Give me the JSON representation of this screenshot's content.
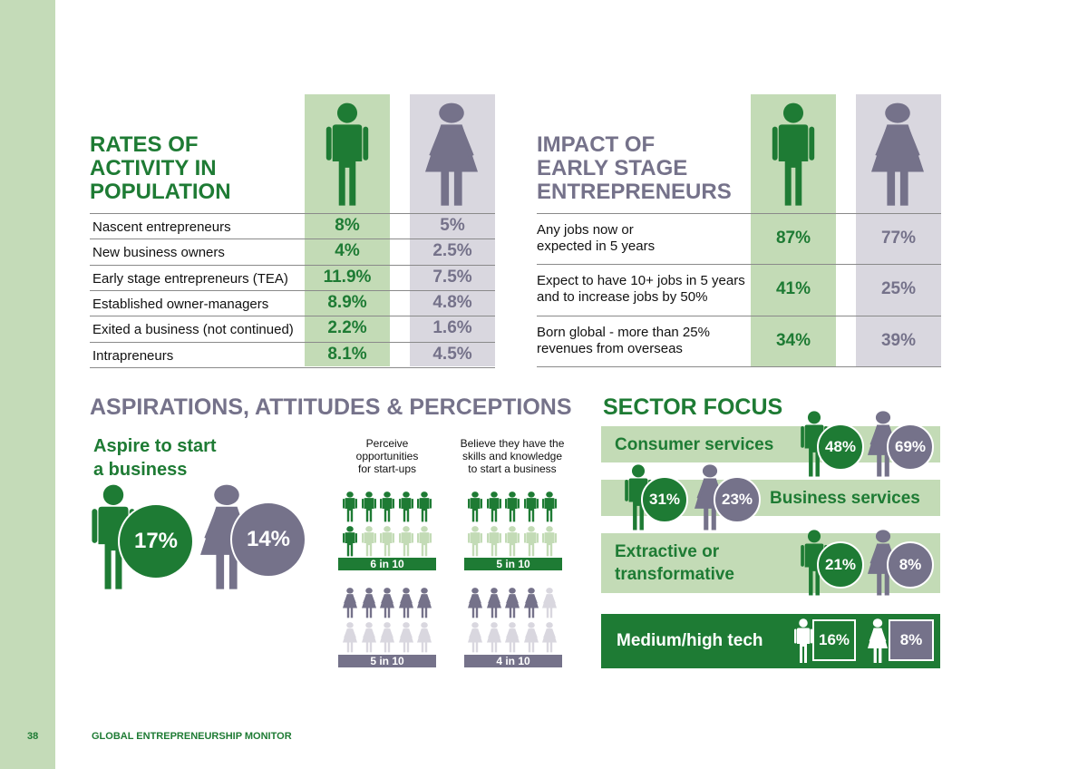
{
  "page_number": "38",
  "footer_title": "GLOBAL ENTREPRENEURSHIP MONITOR",
  "colors": {
    "green": "#1e7b34",
    "purple": "#75728a",
    "light_green": "#c3dbb6",
    "light_purple": "#d9d7df"
  },
  "rates": {
    "title_lines": [
      "RATES OF",
      "ACTIVITY IN",
      "POPULATION"
    ],
    "rows": [
      {
        "label": "Nascent entrepreneurs",
        "male": "8%",
        "female": "5%"
      },
      {
        "label": "New business owners",
        "male": "4%",
        "female": "2.5%"
      },
      {
        "label": "Early stage entrepreneurs (TEA)",
        "male": "11.9%",
        "female": "7.5%"
      },
      {
        "label": "Established owner-managers",
        "male": "8.9%",
        "female": "4.8%"
      },
      {
        "label": "Exited a business (not continued)",
        "male": "2.2%",
        "female": "1.6%"
      },
      {
        "label": "Intrapreneurs",
        "male": "8.1%",
        "female": "4.5%"
      }
    ]
  },
  "impact": {
    "title_lines": [
      "IMPACT OF",
      "EARLY STAGE",
      "ENTREPRENEURS"
    ],
    "rows": [
      {
        "label_lines": [
          "Any jobs now or",
          "expected in 5 years"
        ],
        "male": "87%",
        "female": "77%"
      },
      {
        "label_lines": [
          "Expect to have 10+ jobs in 5 years",
          "and to increase jobs by 50%"
        ],
        "male": "41%",
        "female": "25%"
      },
      {
        "label_lines": [
          "Born global - more than 25%",
          "revenues from overseas"
        ],
        "male": "34%",
        "female": "39%"
      }
    ]
  },
  "aspirations": {
    "title": "ASPIRATIONS, ATTITUDES & PERCEPTIONS",
    "aspire_lines": [
      "Aspire to start",
      "a business"
    ],
    "aspire_male": "17%",
    "aspire_female": "14%",
    "perceive_lines": [
      "Perceive",
      "opportunities",
      "for start-ups"
    ],
    "skills_lines": [
      "Believe they have the",
      "skills and knowledge",
      "to start a business"
    ],
    "perceive_male": {
      "label": "6 in 10",
      "count": 6
    },
    "perceive_female": {
      "label": "5 in 10",
      "count": 5
    },
    "skills_male": {
      "label": "5 in 10",
      "count": 5
    },
    "skills_female": {
      "label": "4 in 10",
      "count": 4
    }
  },
  "sector": {
    "title": "SECTOR FOCUS",
    "consumer": {
      "label": "Consumer services",
      "male": "48%",
      "female": "69%"
    },
    "business": {
      "label": "Business services",
      "male": "31%",
      "female": "23%"
    },
    "extractive": {
      "label_lines": [
        "Extractive or",
        "transformative"
      ],
      "male": "21%",
      "female": "8%"
    },
    "tech": {
      "label": "Medium/high tech",
      "male": "16%",
      "female": "8%"
    }
  }
}
